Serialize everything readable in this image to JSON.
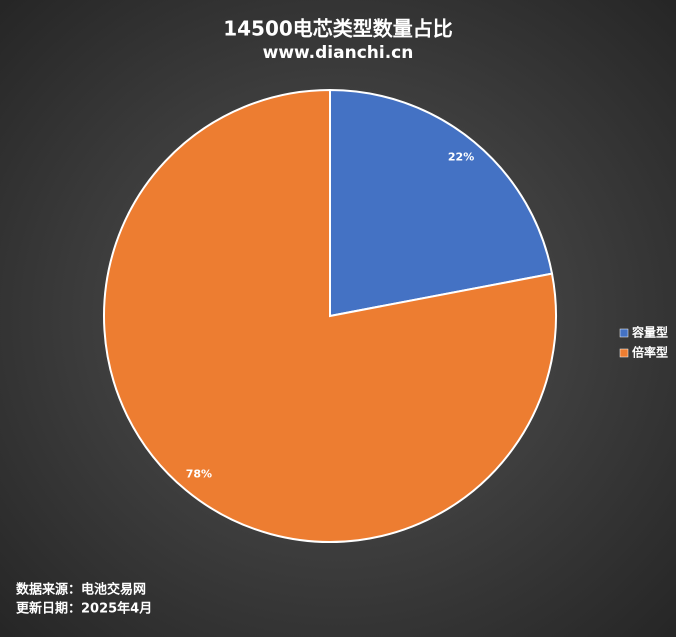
{
  "chart_data": {
    "type": "pie",
    "title": "14500电芯类型数量占比",
    "subtitle": "www.dianchi.cn",
    "categories": [
      "容量型",
      "倍率型"
    ],
    "values": [
      22,
      78
    ],
    "value_labels": [
      "22%",
      "78%"
    ],
    "colors": [
      "#4472c4",
      "#ed7d31"
    ],
    "legend": "right",
    "source": "数据来源：电池交易网",
    "updated": "更新日期：2025年4月"
  }
}
